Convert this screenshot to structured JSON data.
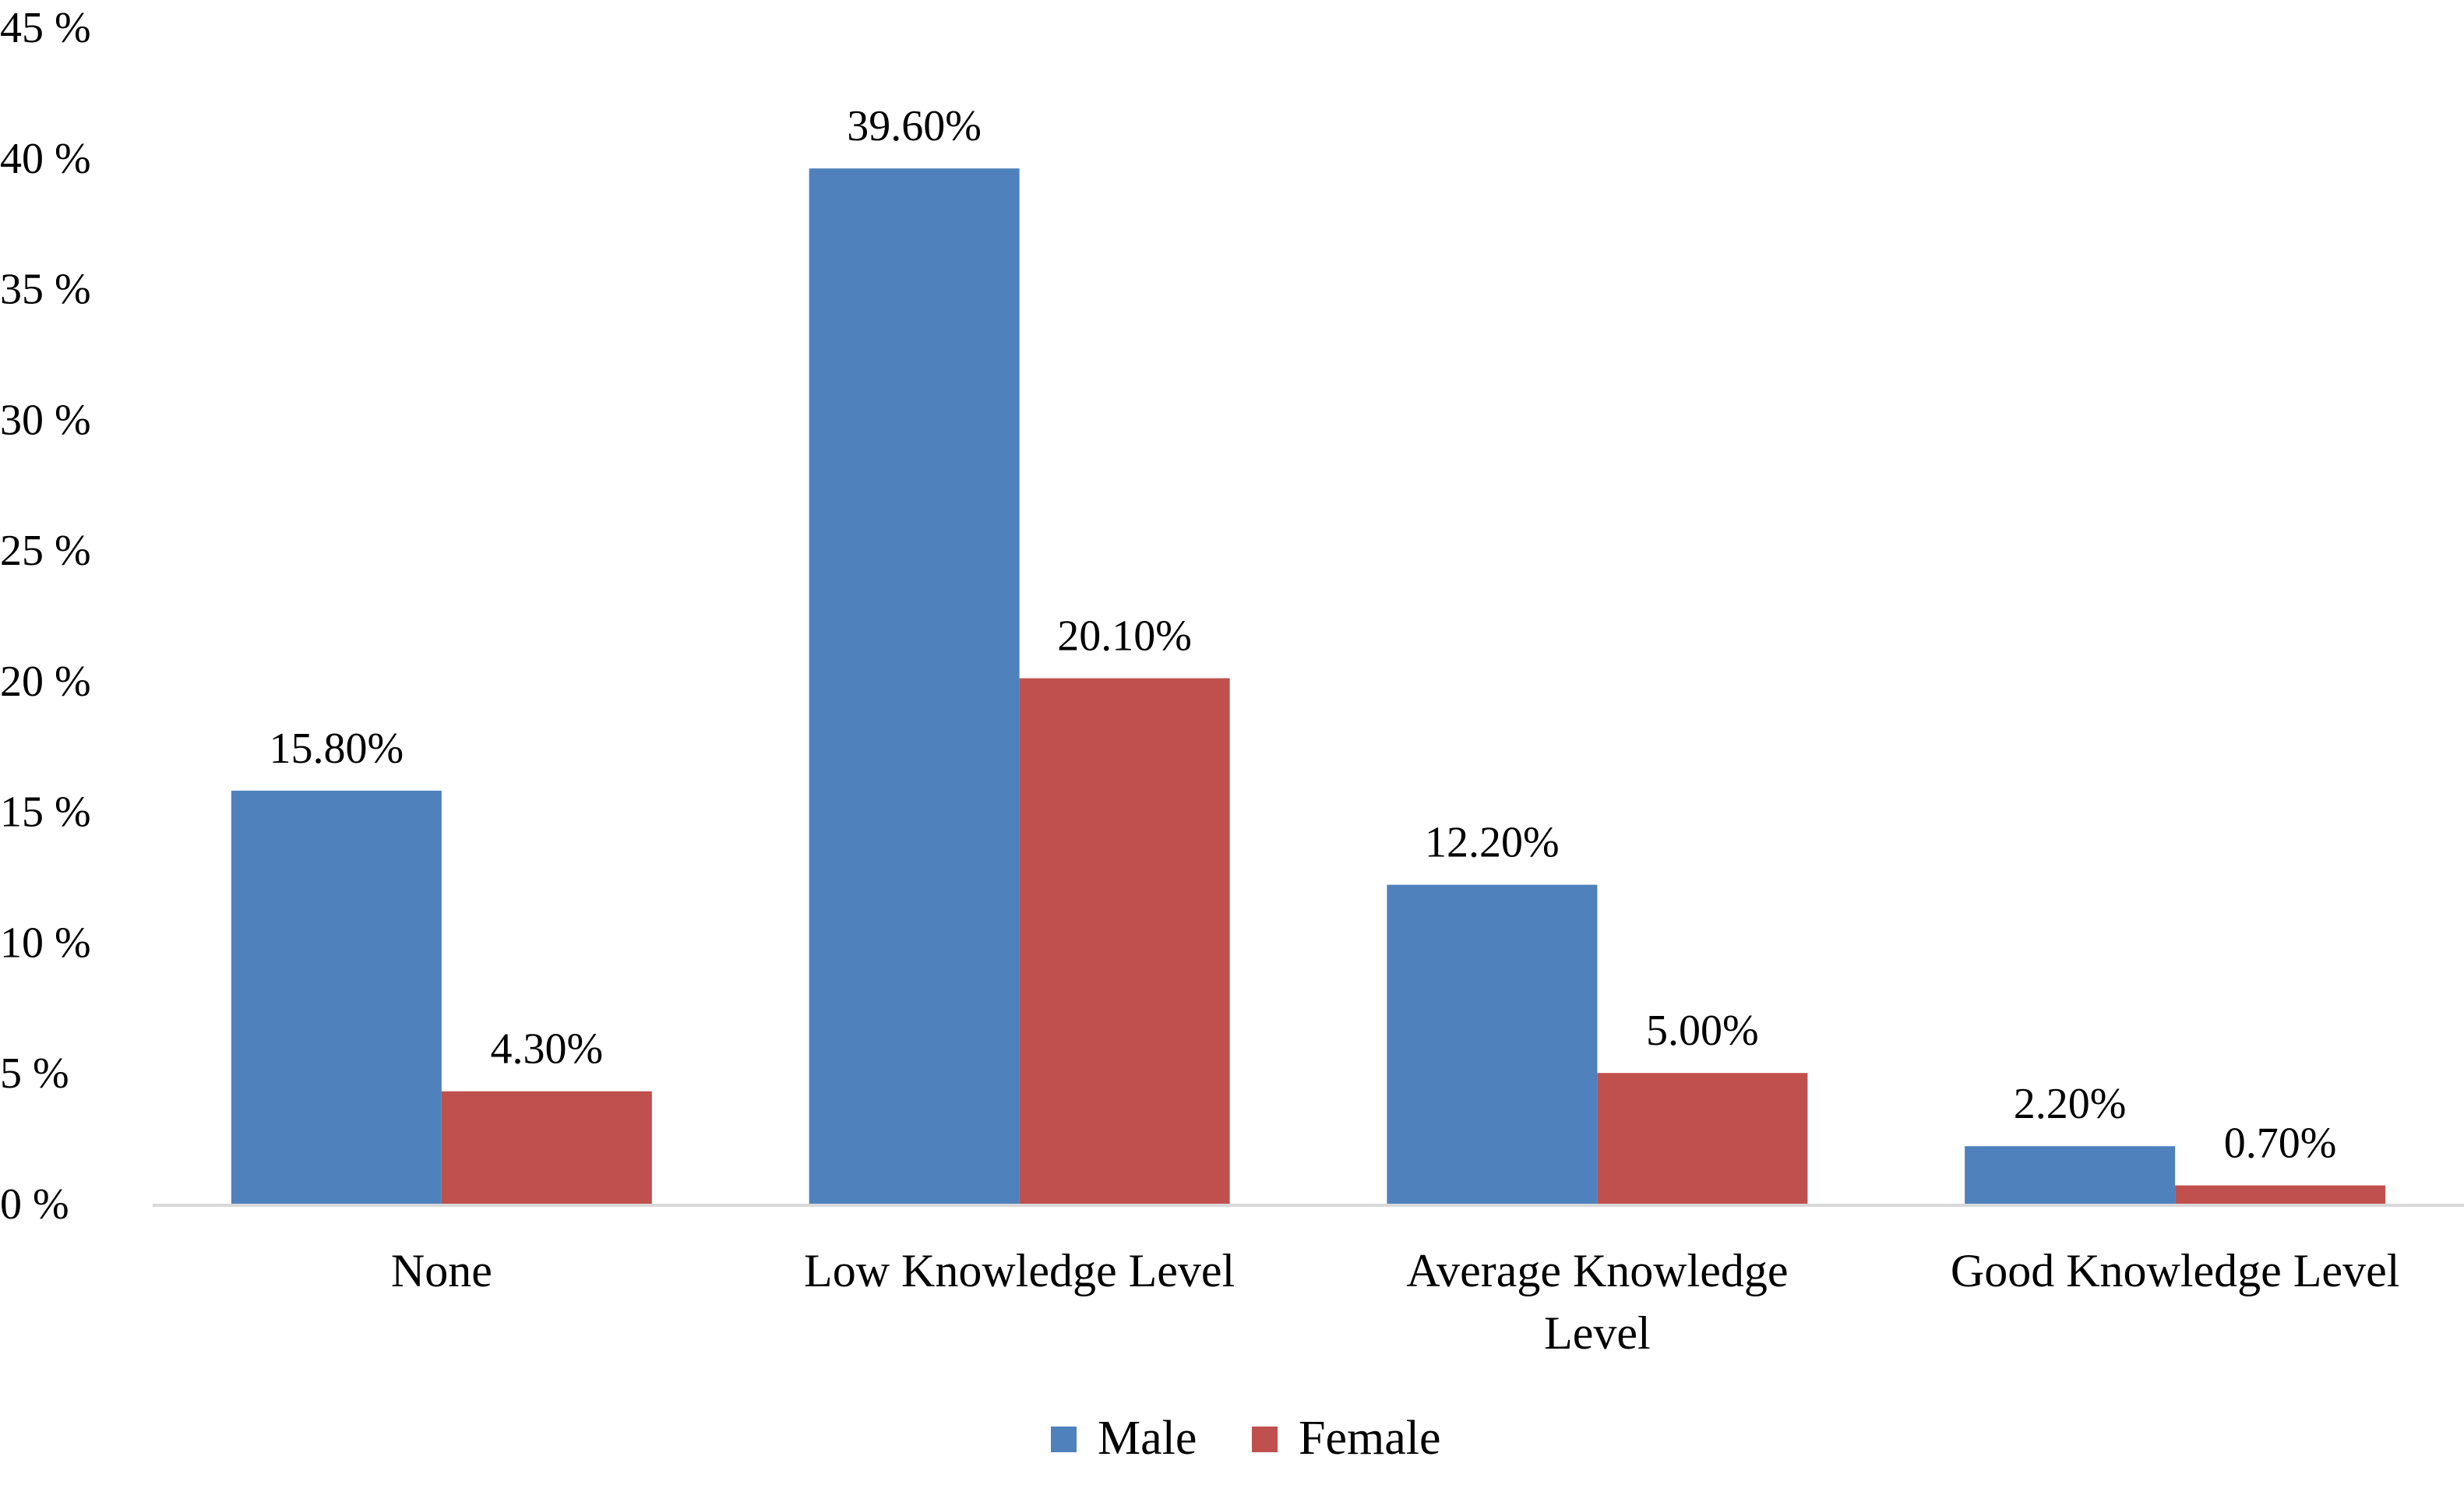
{
  "chart_data": {
    "type": "bar",
    "title": "",
    "xlabel": "",
    "ylabel": "",
    "categories": [
      [
        "None"
      ],
      [
        "Low Knowledge Level"
      ],
      [
        "Average Knowledge",
        "Level"
      ],
      [
        "Good Knowledge Level"
      ]
    ],
    "series": [
      {
        "name": "Male",
        "color": "#4F81BD",
        "values": [
          15.8,
          39.6,
          12.2,
          2.2
        ],
        "labels": [
          "15.80%",
          "39.60%",
          "12.20%",
          "2.20%"
        ]
      },
      {
        "name": "Female",
        "color": "#C0504D",
        "values": [
          4.3,
          20.1,
          5.0,
          0.7
        ],
        "labels": [
          "4.30%",
          "20.10%",
          "5.00%",
          "0.70%"
        ]
      }
    ],
    "ylim": [
      0,
      45
    ],
    "yticks": [
      0,
      5,
      10,
      15,
      20,
      25,
      30,
      35,
      40,
      45
    ],
    "ytick_labels": [
      "0 %",
      "5 %",
      "10 %",
      "15 %",
      "20 %",
      "25 %",
      "30 %",
      "35 %",
      "40 %",
      "45 %"
    ],
    "grid": false,
    "legend": "bottom-center",
    "axis_color": "#D9D9D9"
  }
}
